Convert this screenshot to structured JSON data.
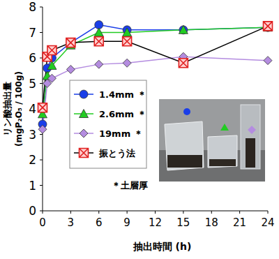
{
  "chart_data": {
    "type": "line",
    "y_label": "リン酸抽出量",
    "y_label_unit": "(mgP₂O₅ / 100g)",
    "x_label": "抽出時間 (h)",
    "annotation": "＊土層厚",
    "x": [
      0,
      0.5,
      1,
      3,
      6,
      9,
      15,
      24
    ],
    "xlim": [
      0,
      24
    ],
    "xticks": [
      0,
      3,
      6,
      9,
      12,
      15,
      18,
      21,
      24
    ],
    "ylim": [
      0,
      8
    ],
    "yticks": [
      0,
      1,
      2,
      3,
      4,
      5,
      6,
      7,
      8
    ],
    "grid": false,
    "legend": "left",
    "series": [
      {
        "name": "1.4mm ＊",
        "color": "#1a3ee8",
        "marker": "circle",
        "values": [
          3.4,
          5.6,
          6.0,
          6.6,
          7.3,
          7.1,
          7.1,
          7.2
        ]
      },
      {
        "name": "2.6mm ＊",
        "color": "#22cc22",
        "marker": "triangle",
        "values": [
          3.8,
          5.3,
          5.7,
          6.5,
          7.0,
          7.0,
          7.1,
          7.2
        ]
      },
      {
        "name": "19mm ＊",
        "color": "#b48ce0",
        "marker": "diamond",
        "values": [
          3.2,
          5.0,
          5.2,
          5.55,
          5.75,
          5.8,
          6.05,
          5.9
        ]
      },
      {
        "name": "振とう法",
        "color": "#e02020",
        "marker": "square-x",
        "values": [
          4.05,
          6.05,
          6.3,
          6.6,
          6.65,
          6.65,
          5.8,
          7.25
        ]
      }
    ]
  }
}
